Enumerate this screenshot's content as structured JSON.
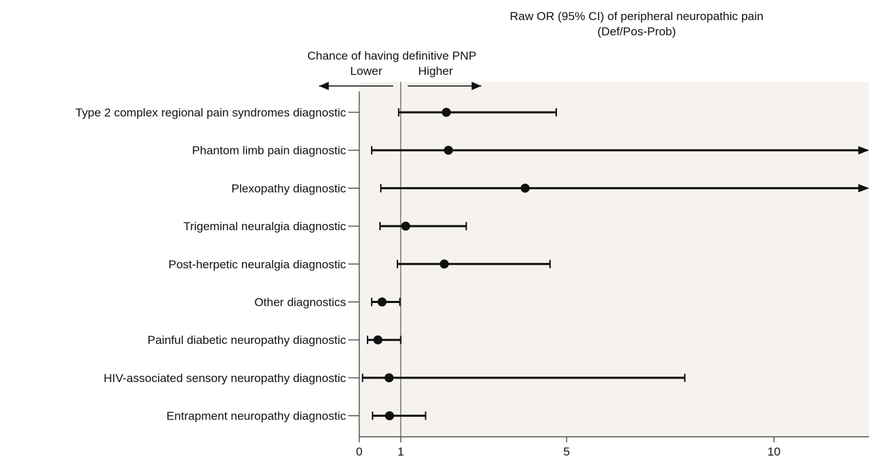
{
  "chart_data": {
    "type": "forest",
    "title": "Raw OR (95% CI) of peripheral neuropathic pain",
    "subtitle": "(Def/Pos-Prob)",
    "direction": {
      "header": "Chance of having definitive PNP",
      "lower": "Lower",
      "higher": "Higher"
    },
    "reference_line": 1,
    "xlim": [
      0,
      12.3
    ],
    "x_ticks": [
      0,
      1,
      5,
      10
    ],
    "x_tick_labels": [
      "0",
      "1",
      "5",
      "10"
    ],
    "rows": [
      {
        "label": "Type 2 complex regional pain syndromes diagnostic",
        "or": 2.1,
        "lo": 0.95,
        "hi": 4.75,
        "hi_open": false
      },
      {
        "label": "Phantom limb pain diagnostic",
        "or": 2.15,
        "lo": 0.3,
        "hi": 12.3,
        "hi_open": true
      },
      {
        "label": "Plexopathy diagnostic",
        "or": 4.0,
        "lo": 0.52,
        "hi": 12.3,
        "hi_open": true
      },
      {
        "label": "Trigeminal neuralgia diagnostic",
        "or": 1.12,
        "lo": 0.5,
        "hi": 2.58,
        "hi_open": false
      },
      {
        "label": "Post-herpetic neuralgia diagnostic",
        "or": 2.05,
        "lo": 0.92,
        "hi": 4.6,
        "hi_open": false
      },
      {
        "label": "Other diagnostics",
        "or": 0.55,
        "lo": 0.3,
        "hi": 0.98,
        "hi_open": false
      },
      {
        "label": "Painful diabetic neuropathy diagnostic",
        "or": 0.45,
        "lo": 0.2,
        "hi": 1.0,
        "hi_open": false
      },
      {
        "label": "HIV-associated sensory neuropathy diagnostic",
        "or": 0.72,
        "lo": 0.08,
        "hi": 7.85,
        "hi_open": false
      },
      {
        "label": "Entrapment neuropathy diagnostic",
        "or": 0.73,
        "lo": 0.32,
        "hi": 1.6,
        "hi_open": false
      }
    ]
  }
}
